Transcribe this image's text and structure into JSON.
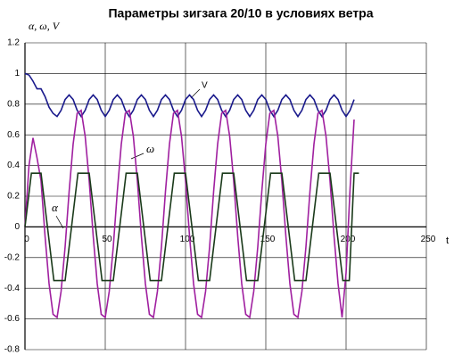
{
  "chart_data": {
    "type": "line",
    "title": "Параметры зигзага 20/10 в условиях ветра",
    "y_label": "α, ω, V",
    "x_label": "t",
    "annotations": [
      "V",
      "ω",
      "α"
    ],
    "x": [
      0,
      2.5,
      5,
      7.5,
      10,
      12.5,
      15,
      17.5,
      20,
      22.5,
      25,
      27.5,
      30,
      32.5,
      35,
      37.5,
      40,
      42.5,
      45,
      47.5,
      50,
      52.5,
      55,
      57.5,
      60,
      62.5,
      65,
      67.5,
      70,
      72.5,
      75,
      77.5,
      80,
      82.5,
      85,
      87.5,
      90,
      92.5,
      95,
      97.5,
      100,
      102.5,
      105,
      107.5,
      110,
      112.5,
      115,
      117.5,
      120,
      122.5,
      125,
      127.5,
      130,
      132.5,
      135,
      137.5,
      140,
      142.5,
      145,
      147.5,
      150,
      152.5,
      155,
      157.5,
      160,
      162.5,
      165,
      167.5,
      170,
      172.5,
      175,
      177.5,
      180,
      182.5,
      185,
      187.5,
      190,
      192.5,
      195,
      197.5,
      200,
      202.5,
      205
    ],
    "series": [
      {
        "name": "V",
        "color": "#1a1a8c",
        "values": [
          1.0,
          0.99,
          0.95,
          0.9,
          0.9,
          0.85,
          0.78,
          0.74,
          0.72,
          0.76,
          0.83,
          0.86,
          0.83,
          0.76,
          0.72,
          0.76,
          0.83,
          0.86,
          0.83,
          0.76,
          0.72,
          0.76,
          0.83,
          0.86,
          0.83,
          0.76,
          0.72,
          0.76,
          0.83,
          0.86,
          0.83,
          0.76,
          0.72,
          0.76,
          0.83,
          0.86,
          0.83,
          0.76,
          0.72,
          0.76,
          0.83,
          0.86,
          0.83,
          0.76,
          0.72,
          0.76,
          0.83,
          0.86,
          0.83,
          0.76,
          0.72,
          0.76,
          0.83,
          0.86,
          0.83,
          0.76,
          0.72,
          0.76,
          0.83,
          0.86,
          0.83,
          0.76,
          0.72,
          0.76,
          0.83,
          0.86,
          0.83,
          0.76,
          0.72,
          0.76,
          0.83,
          0.86,
          0.83,
          0.76,
          0.72,
          0.76,
          0.83,
          0.86,
          0.83,
          0.76,
          0.72,
          0.76,
          0.83
        ]
      },
      {
        "name": "ω",
        "color": "#a020a0",
        "values": [
          0,
          0.4,
          0.58,
          0.45,
          0.3,
          -0.06,
          -0.37,
          -0.57,
          -0.59,
          -0.42,
          -0.13,
          0.23,
          0.54,
          0.74,
          0.76,
          0.59,
          0.3,
          -0.06,
          -0.37,
          -0.57,
          -0.59,
          -0.42,
          -0.13,
          0.23,
          0.54,
          0.74,
          0.76,
          0.59,
          0.3,
          -0.06,
          -0.37,
          -0.57,
          -0.59,
          -0.42,
          -0.13,
          0.23,
          0.54,
          0.74,
          0.76,
          0.59,
          0.3,
          -0.06,
          -0.37,
          -0.57,
          -0.59,
          -0.42,
          -0.13,
          0.23,
          0.54,
          0.74,
          0.76,
          0.59,
          0.3,
          -0.06,
          -0.37,
          -0.57,
          -0.59,
          -0.42,
          -0.13,
          0.23,
          0.54,
          0.74,
          0.76,
          0.59,
          0.3,
          -0.06,
          -0.37,
          -0.57,
          -0.59,
          -0.42,
          -0.13,
          0.23,
          0.54,
          0.74,
          0.76,
          0.59,
          0.3,
          -0.06,
          -0.37,
          -0.59,
          -0.3,
          0.25,
          0.7
        ]
      },
      {
        "name": "α",
        "color": "#1a3a1a",
        "x": [
          0,
          4,
          10,
          18,
          25,
          33,
          40,
          48,
          55,
          63,
          70,
          78,
          85,
          93,
          100,
          108,
          115,
          123,
          130,
          138,
          145,
          153,
          160,
          168,
          175,
          183,
          190,
          198,
          202,
          205,
          208
        ],
        "values": [
          0,
          0.35,
          0.35,
          -0.35,
          -0.35,
          0.35,
          0.35,
          -0.35,
          -0.35,
          0.35,
          0.35,
          -0.35,
          -0.35,
          0.35,
          0.35,
          -0.35,
          -0.35,
          0.35,
          0.35,
          -0.35,
          -0.35,
          0.35,
          0.35,
          -0.35,
          -0.35,
          0.35,
          0.35,
          -0.35,
          -0.35,
          0.35,
          0.35
        ]
      }
    ],
    "xlim": [
      0,
      250
    ],
    "xticks": [
      0,
      50,
      100,
      150,
      200,
      250
    ],
    "ylim": [
      -0.8,
      1.2
    ],
    "yticks": [
      -0.8,
      -0.6,
      -0.4,
      -0.2,
      0,
      0.2,
      0.4,
      0.6,
      0.8,
      1,
      1.2
    ],
    "grid": true
  }
}
